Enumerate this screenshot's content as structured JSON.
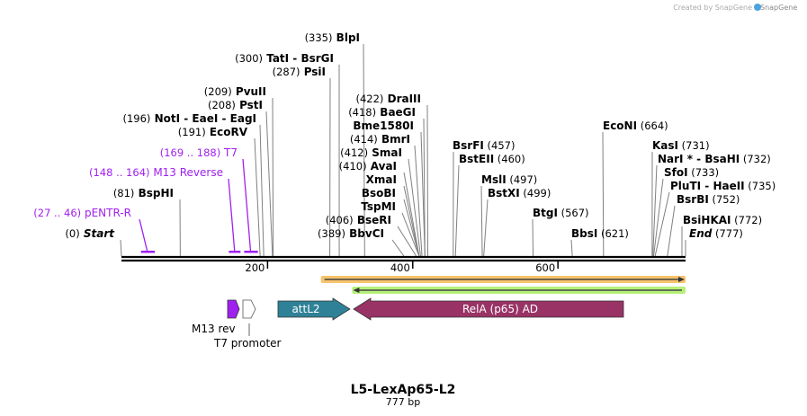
{
  "credit": "Created by SnapGene",
  "title": "L5-LexAp65-L2",
  "length_label": "777 bp",
  "sequence_length": 777,
  "axis_ticks": [
    {
      "value": 200,
      "label": "200"
    },
    {
      "value": 400,
      "label": "400"
    },
    {
      "value": 600,
      "label": "600"
    }
  ],
  "left_labels": [
    {
      "pos": "(335)",
      "name": "BlpI",
      "site": 335
    },
    {
      "pos": "(300)",
      "name": "TatI  - BsrGI",
      "site": 300
    },
    {
      "pos": "(287)",
      "name": "PsiI",
      "site": 287
    },
    {
      "pos": "(209)",
      "name": "PvuII",
      "site": 209
    },
    {
      "pos": "(208)",
      "name": "PstI",
      "site": 208
    },
    {
      "pos": "(196)",
      "name": "NotI  - EaeI  - EagI",
      "site": 196
    },
    {
      "pos": "(191)",
      "name": "EcoRV",
      "site": 191
    },
    {
      "pos": "(169 .. 188)",
      "name": "T7",
      "site": 178,
      "primer": true
    },
    {
      "pos": "(148 .. 164)",
      "name": "M13 Reverse",
      "site": 156,
      "primer": true
    },
    {
      "pos": "(81)",
      "name": "BspHI",
      "site": 81
    },
    {
      "pos": "(27 .. 46)",
      "name": "pENTR-R",
      "site": 36,
      "primer": true
    },
    {
      "pos": "(0)",
      "name": "Start",
      "site": 0,
      "italic": true
    },
    {
      "pos": "(422)",
      "name": "DraIII",
      "site": 422
    },
    {
      "pos": "(418)",
      "name": "BaeGI",
      "site": 418
    },
    {
      "pos": "",
      "name": "Bme1580I",
      "site": 418
    },
    {
      "pos": "(414)",
      "name": "BmrI",
      "site": 414
    },
    {
      "pos": "(412)",
      "name": "SmaI",
      "site": 412
    },
    {
      "pos": "(410)",
      "name": "AvaI",
      "site": 410
    },
    {
      "pos": "",
      "name": "XmaI",
      "site": 410
    },
    {
      "pos": "",
      "name": "BsoBI",
      "site": 410
    },
    {
      "pos": "",
      "name": "TspMI",
      "site": 410
    },
    {
      "pos": "(406)",
      "name": "BseRI",
      "site": 406
    },
    {
      "pos": "(389)",
      "name": "BbvCI",
      "site": 389
    }
  ],
  "right_labels": [
    {
      "name": "EcoNI",
      "pos": "(664)",
      "site": 664
    },
    {
      "name": "BsrFI",
      "pos": "(457)",
      "site": 457
    },
    {
      "name": "BstEII",
      "pos": "(460)",
      "site": 460
    },
    {
      "name": "MslI",
      "pos": "(497)",
      "site": 497
    },
    {
      "name": "BstXI",
      "pos": "(499)",
      "site": 499
    },
    {
      "name": "BtgI",
      "pos": "(567)",
      "site": 567
    },
    {
      "name": "BbsI",
      "pos": "(621)",
      "site": 621
    },
    {
      "name": "KasI",
      "pos": "(731)",
      "site": 731
    },
    {
      "name": "NarI * - BsaHI",
      "pos": "(732)",
      "site": 732
    },
    {
      "name": "SfoI",
      "pos": "(733)",
      "site": 733
    },
    {
      "name": "PluTI  - HaeII",
      "pos": "(735)",
      "site": 735
    },
    {
      "name": "BsrBI",
      "pos": "(752)",
      "site": 752
    },
    {
      "name": "BsiHKAI",
      "pos": "(772)",
      "site": 772
    },
    {
      "name": "End",
      "pos": "(777)",
      "site": 777,
      "italic": true
    }
  ],
  "primer_sites": [
    {
      "name": "pENTR-R",
      "start": 27,
      "end": 46
    },
    {
      "name": "M13 Reverse",
      "start": 148,
      "end": 164
    },
    {
      "name": "T7",
      "start": 169,
      "end": 188
    }
  ],
  "orf_bars": [
    {
      "name": "orf-forward",
      "start": 276,
      "end": 777,
      "direction": "right",
      "color": "#f7c36b"
    },
    {
      "name": "orf-reverse",
      "start": 319,
      "end": 777,
      "direction": "left",
      "color": "#b6f07a"
    }
  ],
  "features": [
    {
      "label": "M13 rev",
      "color": "#a020f0"
    },
    {
      "label": "T7 promoter",
      "color": "#ffffff"
    },
    {
      "label": "attL2",
      "color": "#2f8197"
    },
    {
      "label": "RelA (p65) AD",
      "color": "#993366"
    }
  ],
  "colors": {
    "primer": "#a020f0",
    "enzyme_line": "#808080"
  }
}
